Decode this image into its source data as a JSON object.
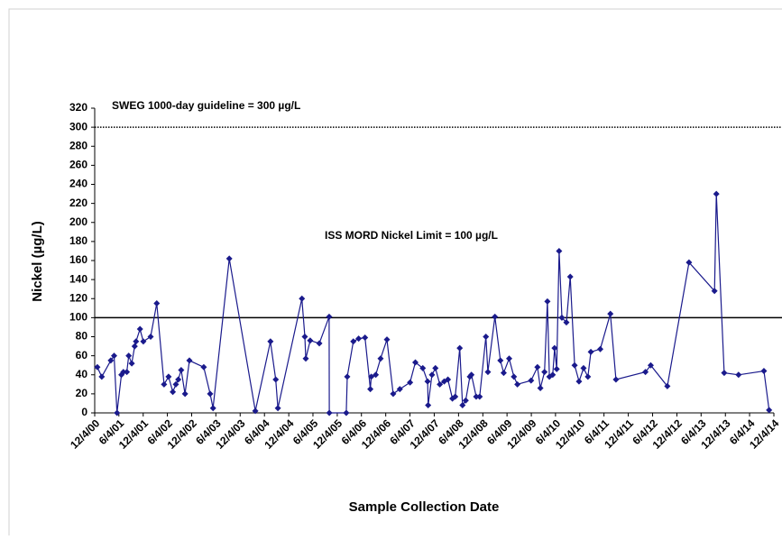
{
  "chart_data": {
    "type": "line",
    "y_label": "Nickel (µg/L)",
    "x_label": "Sample Collection Date",
    "ylim": [
      0,
      320
    ],
    "yticks": [
      0,
      20,
      40,
      60,
      80,
      100,
      120,
      140,
      160,
      180,
      200,
      220,
      240,
      260,
      280,
      300,
      320
    ],
    "xlim": [
      "2000-12-04",
      "2014-12-04"
    ],
    "xticks": [
      {
        "value": "2000-12-04",
        "label": "12/4/00"
      },
      {
        "value": "2001-06-04",
        "label": "6/4/01"
      },
      {
        "value": "2001-12-04",
        "label": "12/4/01"
      },
      {
        "value": "2002-06-04",
        "label": "6/4/02"
      },
      {
        "value": "2002-12-04",
        "label": "12/4/02"
      },
      {
        "value": "2003-06-04",
        "label": "6/4/03"
      },
      {
        "value": "2003-12-04",
        "label": "12/4/03"
      },
      {
        "value": "2004-06-04",
        "label": "6/4/04"
      },
      {
        "value": "2004-12-04",
        "label": "12/4/04"
      },
      {
        "value": "2005-06-04",
        "label": "6/4/05"
      },
      {
        "value": "2005-12-04",
        "label": "12/4/05"
      },
      {
        "value": "2006-06-04",
        "label": "6/4/06"
      },
      {
        "value": "2006-12-04",
        "label": "12/4/06"
      },
      {
        "value": "2007-06-04",
        "label": "6/4/07"
      },
      {
        "value": "2007-12-04",
        "label": "12/4/07"
      },
      {
        "value": "2008-06-04",
        "label": "6/4/08"
      },
      {
        "value": "2008-12-04",
        "label": "12/4/08"
      },
      {
        "value": "2009-06-04",
        "label": "6/4/09"
      },
      {
        "value": "2009-12-04",
        "label": "12/4/09"
      },
      {
        "value": "2010-06-04",
        "label": "6/4/10"
      },
      {
        "value": "2010-12-04",
        "label": "12/4/10"
      },
      {
        "value": "2011-06-04",
        "label": "6/4/11"
      },
      {
        "value": "2011-12-04",
        "label": "12/4/11"
      },
      {
        "value": "2012-06-04",
        "label": "6/4/12"
      },
      {
        "value": "2012-12-04",
        "label": "12/4/12"
      },
      {
        "value": "2013-06-04",
        "label": "6/4/13"
      },
      {
        "value": "2013-12-04",
        "label": "12/4/13"
      },
      {
        "value": "2014-06-04",
        "label": "6/4/14"
      },
      {
        "value": "2014-12-04",
        "label": "12/4/14"
      }
    ],
    "reference_lines": [
      {
        "value": 300,
        "label": "SWEG 1000-day guideline  = 300 µg/L",
        "style": "dotted"
      },
      {
        "value": 100,
        "label": "ISS MORD Nickel Limit = 100 µg/L",
        "style": "solid"
      }
    ],
    "series": [
      {
        "color": "#1a1a8c",
        "x": [
          "2000-12-24",
          "2001-01-26",
          "2001-04-04",
          "2001-04-29",
          "2001-05-21",
          "2001-06-23",
          "2001-07-08",
          "2001-08-03",
          "2001-08-17",
          "2001-09-09",
          "2001-10-01",
          "2001-10-11",
          "2001-11-10",
          "2001-12-05",
          "2002-01-29",
          "2002-03-16",
          "2002-05-10",
          "2002-06-13",
          "2002-07-15",
          "2002-08-07",
          "2002-08-25",
          "2002-09-16",
          "2002-10-15",
          "2002-11-17",
          "2003-03-05",
          "2003-04-22",
          "2003-05-14",
          "2003-09-13",
          "2004-03-27",
          "2004-07-19",
          "2004-08-28",
          "2004-09-13",
          "2005-03-13",
          "2005-04-04",
          "2005-04-11",
          "2005-05-14",
          "2005-07-22",
          "2005-10-04",
          "2005-10-05",
          "2006-02-10",
          "2006-02-17",
          "2006-04-04",
          "2006-05-14",
          "2006-07-01",
          "2006-08-10",
          "2006-08-17",
          "2006-09-20",
          "2006-10-26",
          "2006-12-13",
          "2007-01-29",
          "2007-03-20",
          "2007-06-05",
          "2007-07-15",
          "2007-09-09",
          "2007-10-15",
          "2007-10-19",
          "2007-11-17",
          "2007-12-13",
          "2008-01-15",
          "2008-02-17",
          "2008-03-16",
          "2008-04-19",
          "2008-05-10",
          "2008-06-13",
          "2008-07-04",
          "2008-07-28",
          "2008-08-28",
          "2008-09-09",
          "2008-10-15",
          "2008-11-10",
          "2008-12-27",
          "2009-01-11",
          "2009-03-05",
          "2009-04-15",
          "2009-05-10",
          "2009-06-20",
          "2009-07-26",
          "2009-08-21",
          "2009-12-02",
          "2010-01-19",
          "2010-02-10",
          "2010-03-13",
          "2010-04-04",
          "2010-04-19",
          "2010-05-14",
          "2010-05-28",
          "2010-06-13",
          "2010-07-01",
          "2010-07-22",
          "2010-08-25",
          "2010-09-23",
          "2010-10-26",
          "2010-11-28",
          "2011-01-01",
          "2011-02-03",
          "2011-02-25",
          "2011-05-07",
          "2011-07-22",
          "2011-09-02",
          "2012-04-11",
          "2012-05-21",
          "2012-09-23",
          "2013-03-05",
          "2013-09-13",
          "2013-09-27",
          "2013-11-25",
          "2014-03-13",
          "2014-09-20",
          "2014-10-29"
        ],
        "values": [
          48,
          38,
          55,
          60,
          0,
          40,
          43,
          43,
          60,
          52,
          70,
          75,
          88,
          75,
          80,
          115,
          30,
          38,
          22,
          30,
          35,
          45,
          20,
          55,
          48,
          20,
          5,
          162,
          2,
          75,
          35,
          5,
          120,
          80,
          57,
          76,
          73,
          101,
          0,
          0,
          38,
          75,
          78,
          79,
          25,
          38,
          40,
          57,
          77,
          20,
          25,
          32,
          53,
          47,
          33,
          8,
          40,
          47,
          30,
          33,
          35,
          15,
          17,
          68,
          8,
          13,
          38,
          40,
          17,
          17,
          80,
          43,
          101,
          55,
          42,
          57,
          38,
          30,
          34,
          48,
          26,
          43,
          117,
          38,
          40,
          68,
          46,
          170,
          100,
          95,
          143,
          50,
          33,
          47,
          38,
          64,
          67,
          104,
          35,
          43,
          50,
          28,
          158,
          128,
          230,
          42,
          40,
          44,
          3
        ]
      }
    ]
  }
}
